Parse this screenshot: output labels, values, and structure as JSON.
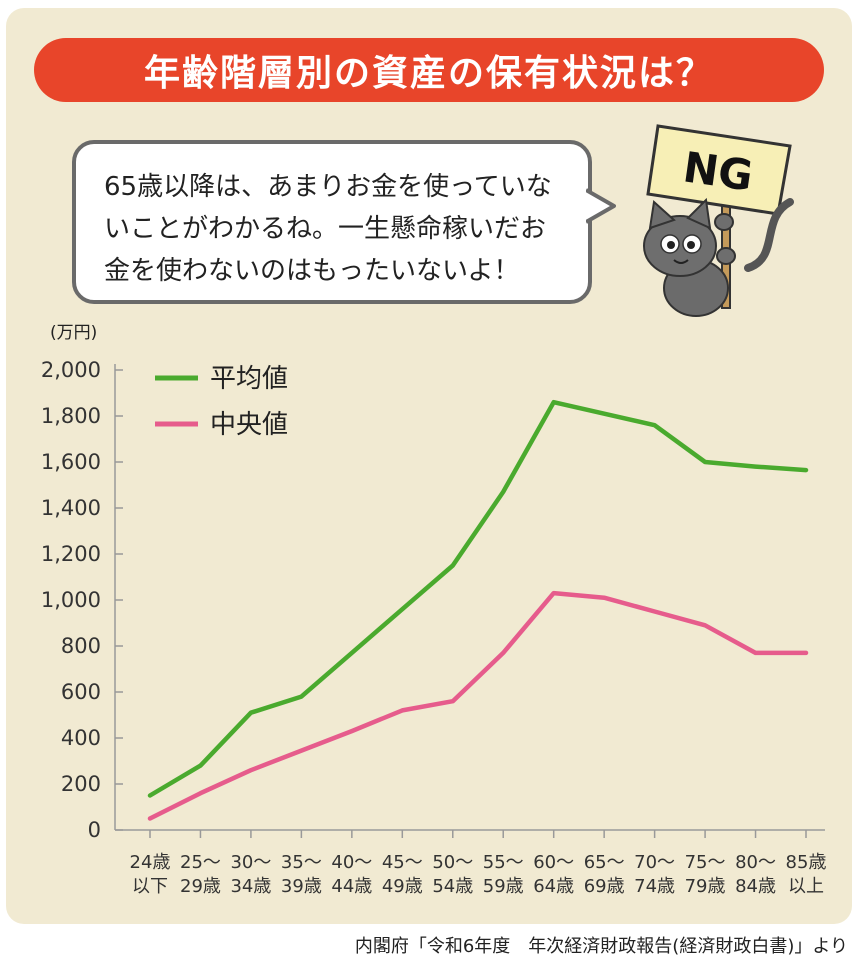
{
  "header": {
    "title": "年齢階層別の資産の保有状況は？"
  },
  "bubble": {
    "lines": [
      "65歳以降は、あまりお金を使っていな",
      "いことがわかるね。一生懸命稼いだお",
      "金を使わないのはもったいないよ！"
    ]
  },
  "sign": {
    "text": "NG"
  },
  "unit_label": "(万円)",
  "source": "内閣府「令和6年度　年次経済財政報告(経済財政白書)」より",
  "colors": {
    "average": "#4aaa2e",
    "median": "#e65c8c",
    "title_bg": "#e8452a",
    "panel_bg": "#f1ead2"
  },
  "chart_data": {
    "type": "line",
    "categories": [
      [
        "24歳",
        "以下"
      ],
      [
        "25～",
        "29歳"
      ],
      [
        "30～",
        "34歳"
      ],
      [
        "35～",
        "39歳"
      ],
      [
        "40～",
        "44歳"
      ],
      [
        "45～",
        "49歳"
      ],
      [
        "50～",
        "54歳"
      ],
      [
        "55～",
        "59歳"
      ],
      [
        "60～",
        "64歳"
      ],
      [
        "65～",
        "69歳"
      ],
      [
        "70～",
        "74歳"
      ],
      [
        "75～",
        "79歳"
      ],
      [
        "80～",
        "84歳"
      ],
      [
        "85歳",
        "以上"
      ]
    ],
    "ylim": [
      0,
      2000
    ],
    "yticks": [
      "0",
      "200",
      "400",
      "600",
      "800",
      "1,000",
      "1,200",
      "1,400",
      "1,600",
      "1,800",
      "2,000"
    ],
    "grid": false,
    "legend_placement": "top-left",
    "series": [
      {
        "name": "平均値",
        "color": "#4aaa2e",
        "values": [
          150,
          280,
          510,
          580,
          770,
          960,
          1150,
          1470,
          1860,
          1810,
          1760,
          1600,
          1580,
          1565
        ]
      },
      {
        "name": "中央値",
        "color": "#e65c8c",
        "values": [
          50,
          160,
          260,
          345,
          430,
          520,
          560,
          770,
          1030,
          1010,
          950,
          890,
          770,
          770
        ]
      }
    ]
  }
}
